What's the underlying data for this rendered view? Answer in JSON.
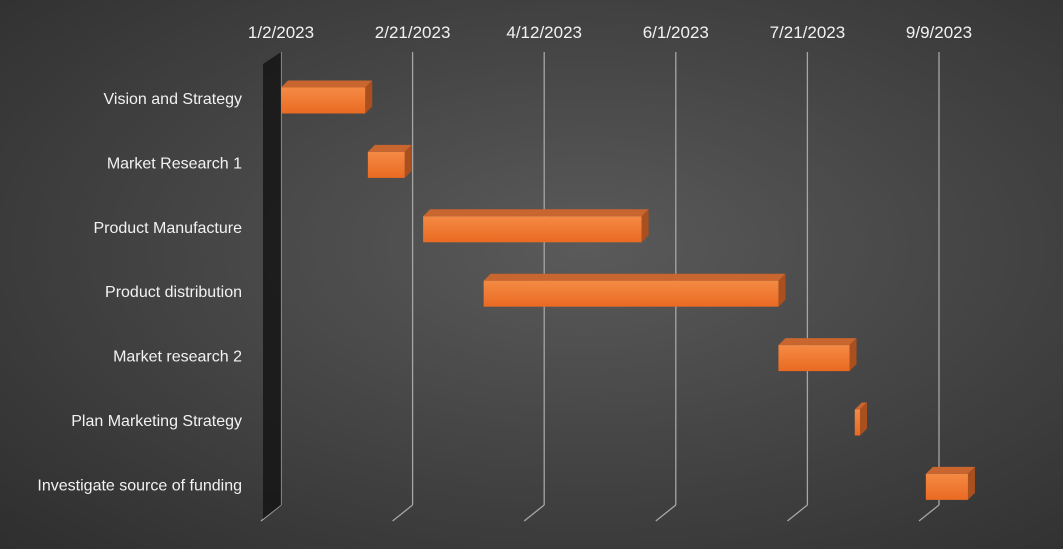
{
  "chart_data": {
    "type": "bar",
    "orientation": "horizontal-gantt-3d",
    "title": "",
    "xlabel": "",
    "ylabel": "",
    "x_axis_position": "top",
    "x_ticks": [
      "1/2/2023",
      "2/21/2023",
      "4/12/2023",
      "6/1/2023",
      "7/21/2023",
      "9/9/2023"
    ],
    "xlim": [
      "2023-01-02",
      "2023-09-09"
    ],
    "grid": "vertical major gridlines",
    "legend": "none",
    "categories": [
      "Vision and Strategy",
      "Market Research 1",
      "Product Manufacture",
      "Product distribution",
      "Market research 2",
      "Plan Marketing Strategy",
      "Investigate source of funding"
    ],
    "series": [
      {
        "values": [
          {
            "start": "2023-01-02",
            "end": "2023-02-03"
          },
          {
            "start": "2023-02-04",
            "end": "2023-02-18"
          },
          {
            "start": "2023-02-25",
            "end": "2023-05-19"
          },
          {
            "start": "2023-03-20",
            "end": "2023-07-10"
          },
          {
            "start": "2023-07-10",
            "end": "2023-08-06"
          },
          {
            "start": "2023-08-08",
            "end": "2023-08-10"
          },
          {
            "start": "2023-09-04",
            "end": "2023-09-20"
          }
        ]
      }
    ],
    "colors": {
      "bar_front": "#f07a32",
      "bar_top": "#c9652e",
      "bar_side": "#a9501e",
      "gridline": "#a6a6a6",
      "text": "#f2f2f2",
      "axis_wall": "#1c1c1c"
    }
  }
}
